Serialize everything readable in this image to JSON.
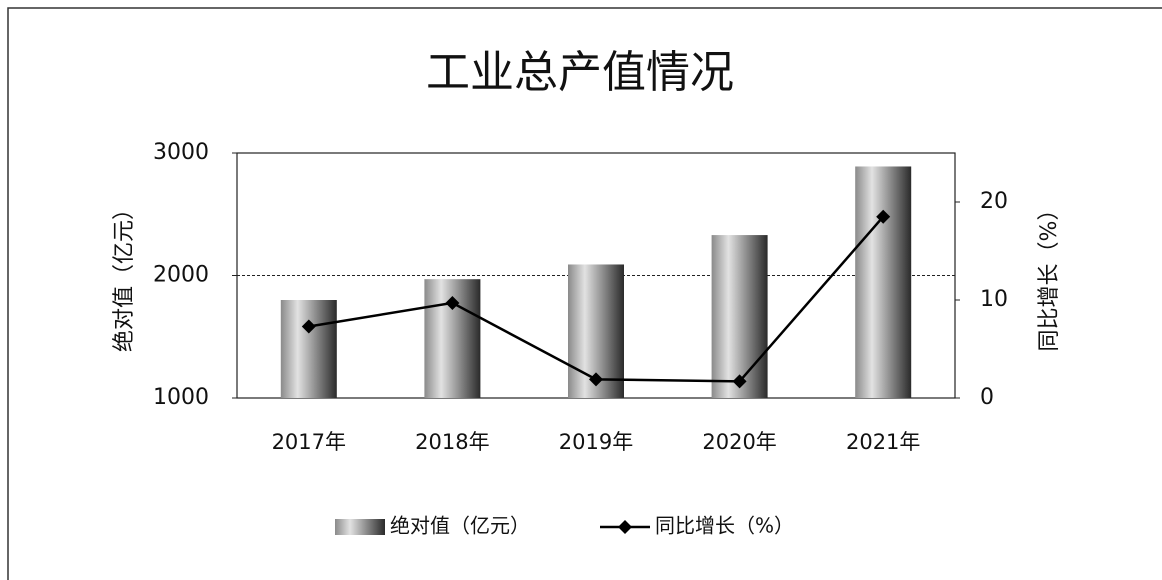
{
  "chart_data": {
    "type": "bar",
    "title": "工业总产值情况",
    "categories": [
      "2017年",
      "2018年",
      "2019年",
      "2020年",
      "2021年"
    ],
    "series": [
      {
        "name": "绝对值（亿元）",
        "type": "bar",
        "color": "#2a2a2a",
        "values": [
          1800,
          1970,
          2090,
          2330,
          2890
        ]
      },
      {
        "name": "同比增长（%）",
        "type": "line",
        "axis": "y2",
        "color": "#000000",
        "values": [
          7.3,
          9.7,
          1.9,
          1.7,
          18.5
        ]
      }
    ],
    "ylabel": "绝对值（亿元）",
    "y2label": "同比增长（%）",
    "ylim": [
      1000,
      3000
    ],
    "yticks": [
      1000,
      2000,
      3000
    ],
    "y2lim": [
      0,
      25
    ],
    "y2ticks": [
      0,
      10,
      20
    ],
    "grid": true,
    "legend": "bottom"
  }
}
